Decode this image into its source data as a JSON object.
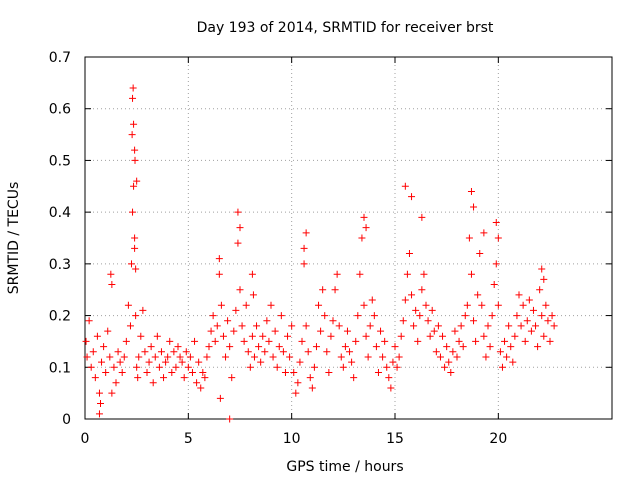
{
  "chart_data": {
    "type": "scatter",
    "title": "Day 193 of 2014, SRMTID for receiver brst",
    "xlabel": "GPS time / hours",
    "ylabel": "SRMTID / TECUs",
    "xlim": [
      0,
      25.5
    ],
    "ylim": [
      0,
      0.7
    ],
    "grid": true,
    "x_ticks": [
      {
        "value": 0,
        "label": "0"
      },
      {
        "value": 5,
        "label": "5"
      },
      {
        "value": 10,
        "label": "10"
      },
      {
        "value": 15,
        "label": "15"
      },
      {
        "value": 20,
        "label": "20"
      }
    ],
    "y_ticks": [
      {
        "value": 0,
        "label": "0"
      },
      {
        "value": 0.1,
        "label": "0.1"
      },
      {
        "value": 0.2,
        "label": "0.2"
      },
      {
        "value": 0.3,
        "label": "0.3"
      },
      {
        "value": 0.4,
        "label": "0.4"
      },
      {
        "value": 0.5,
        "label": "0.5"
      },
      {
        "value": 0.6,
        "label": "0.6"
      },
      {
        "value": 0.7,
        "label": "0.7"
      }
    ],
    "marker": "plus",
    "color": "#ff0000",
    "series": [
      {
        "name": "SRMTID",
        "x": [
          0.05,
          0.1,
          0.2,
          0.3,
          0.4,
          0.5,
          0.6,
          0.7,
          0.8,
          0.9,
          1.0,
          1.1,
          1.2,
          1.3,
          1.4,
          1.5,
          1.6,
          1.7,
          1.8,
          1.9,
          2.0,
          2.1,
          2.2,
          2.25,
          2.3,
          2.35,
          2.4,
          2.45,
          2.5,
          2.55,
          2.6,
          2.7,
          2.8,
          2.9,
          3.0,
          3.1,
          3.2,
          3.3,
          3.4,
          3.5,
          3.6,
          3.7,
          3.8,
          3.9,
          4.0,
          4.1,
          4.2,
          4.3,
          4.4,
          4.5,
          4.6,
          4.7,
          4.8,
          4.9,
          5.0,
          5.1,
          5.2,
          5.3,
          5.4,
          5.5,
          5.6,
          5.7,
          5.8,
          5.9,
          6.0,
          6.1,
          6.2,
          6.3,
          6.4,
          6.5,
          6.6,
          6.7,
          6.8,
          6.9,
          7.0,
          7.1,
          7.2,
          7.3,
          7.4,
          7.5,
          7.6,
          7.7,
          7.8,
          7.9,
          8.0,
          8.1,
          8.2,
          8.3,
          8.4,
          8.5,
          8.6,
          8.7,
          8.8,
          8.9,
          9.0,
          9.1,
          9.2,
          9.3,
          9.4,
          9.5,
          9.6,
          9.7,
          9.8,
          9.9,
          10.0,
          10.1,
          10.2,
          10.3,
          10.4,
          10.5,
          10.6,
          10.7,
          10.8,
          10.9,
          11.0,
          11.1,
          11.2,
          11.3,
          11.4,
          11.5,
          11.6,
          11.7,
          11.8,
          11.9,
          12.0,
          12.1,
          12.2,
          12.3,
          12.4,
          12.5,
          12.6,
          12.7,
          12.8,
          12.9,
          13.0,
          13.1,
          13.2,
          13.3,
          13.4,
          13.5,
          13.6,
          13.7,
          13.8,
          13.9,
          14.0,
          14.1,
          14.2,
          14.3,
          14.4,
          14.5,
          14.6,
          14.7,
          14.8,
          14.9,
          15.0,
          15.1,
          15.2,
          15.3,
          15.4,
          15.5,
          15.6,
          15.7,
          15.8,
          15.9,
          16.0,
          16.1,
          16.2,
          16.3,
          16.4,
          16.5,
          16.6,
          16.7,
          16.8,
          16.9,
          17.0,
          17.1,
          17.2,
          17.3,
          17.4,
          17.5,
          17.6,
          17.7,
          17.8,
          17.9,
          18.0,
          18.1,
          18.2,
          18.3,
          18.4,
          18.5,
          18.6,
          18.7,
          18.8,
          18.9,
          19.0,
          19.1,
          19.2,
          19.3,
          19.4,
          19.5,
          19.6,
          19.7,
          19.8,
          19.9,
          20.0,
          20.1,
          20.2,
          20.3,
          20.4,
          20.5,
          20.6,
          20.7,
          20.8,
          20.9,
          21.0,
          21.1,
          21.2,
          21.3,
          21.4,
          21.5,
          21.6,
          21.7,
          21.8,
          21.9,
          22.0,
          22.1,
          22.2,
          22.3,
          22.4,
          22.5,
          22.6,
          22.7,
          2.3,
          2.35,
          2.4,
          2.42,
          2.5,
          2.33,
          2.28,
          0.7,
          0.75,
          1.25,
          1.3,
          6.5,
          6.55,
          7.4,
          7.5,
          8.1,
          8.15,
          10.6,
          10.7,
          13.5,
          13.6,
          15.5,
          15.8,
          16.3,
          18.7,
          18.8,
          19.3,
          19.9,
          20.0,
          22.1,
          22.2,
          2.4,
          2.45,
          7.0
        ],
        "y": [
          0.15,
          0.12,
          0.19,
          0.1,
          0.13,
          0.08,
          0.16,
          0.05,
          0.11,
          0.14,
          0.09,
          0.17,
          0.12,
          0.26,
          0.1,
          0.07,
          0.13,
          0.11,
          0.09,
          0.12,
          0.15,
          0.22,
          0.18,
          0.3,
          0.4,
          0.45,
          0.35,
          0.2,
          0.1,
          0.08,
          0.12,
          0.16,
          0.21,
          0.13,
          0.09,
          0.11,
          0.14,
          0.07,
          0.12,
          0.16,
          0.1,
          0.13,
          0.08,
          0.11,
          0.12,
          0.15,
          0.09,
          0.13,
          0.1,
          0.14,
          0.12,
          0.11,
          0.08,
          0.13,
          0.1,
          0.12,
          0.09,
          0.15,
          0.07,
          0.11,
          0.06,
          0.09,
          0.08,
          0.12,
          0.14,
          0.17,
          0.2,
          0.15,
          0.18,
          0.28,
          0.22,
          0.16,
          0.12,
          0.19,
          0.14,
          0.08,
          0.17,
          0.21,
          0.34,
          0.25,
          0.18,
          0.15,
          0.22,
          0.13,
          0.1,
          0.16,
          0.12,
          0.18,
          0.14,
          0.11,
          0.16,
          0.13,
          0.19,
          0.15,
          0.22,
          0.12,
          0.17,
          0.1,
          0.14,
          0.2,
          0.13,
          0.09,
          0.16,
          0.12,
          0.18,
          0.09,
          0.05,
          0.07,
          0.11,
          0.15,
          0.3,
          0.18,
          0.13,
          0.08,
          0.06,
          0.1,
          0.14,
          0.22,
          0.17,
          0.25,
          0.2,
          0.13,
          0.09,
          0.16,
          0.19,
          0.25,
          0.28,
          0.18,
          0.12,
          0.1,
          0.14,
          0.17,
          0.13,
          0.11,
          0.08,
          0.15,
          0.2,
          0.28,
          0.35,
          0.22,
          0.16,
          0.12,
          0.18,
          0.23,
          0.2,
          0.14,
          0.09,
          0.17,
          0.12,
          0.15,
          0.1,
          0.08,
          0.06,
          0.11,
          0.14,
          0.1,
          0.12,
          0.16,
          0.19,
          0.23,
          0.28,
          0.32,
          0.24,
          0.18,
          0.21,
          0.15,
          0.2,
          0.25,
          0.28,
          0.22,
          0.19,
          0.16,
          0.21,
          0.17,
          0.13,
          0.18,
          0.12,
          0.16,
          0.1,
          0.14,
          0.11,
          0.09,
          0.13,
          0.17,
          0.12,
          0.15,
          0.18,
          0.14,
          0.2,
          0.22,
          0.35,
          0.28,
          0.19,
          0.15,
          0.24,
          0.32,
          0.22,
          0.16,
          0.12,
          0.18,
          0.14,
          0.2,
          0.26,
          0.3,
          0.22,
          0.13,
          0.1,
          0.15,
          0.12,
          0.18,
          0.14,
          0.11,
          0.16,
          0.2,
          0.24,
          0.18,
          0.22,
          0.15,
          0.19,
          0.23,
          0.17,
          0.21,
          0.18,
          0.14,
          0.25,
          0.2,
          0.16,
          0.22,
          0.19,
          0.15,
          0.2,
          0.18,
          0.62,
          0.57,
          0.52,
          0.5,
          0.46,
          0.64,
          0.55,
          0.01,
          0.03,
          0.28,
          0.05,
          0.31,
          0.04,
          0.4,
          0.37,
          0.28,
          0.24,
          0.33,
          0.36,
          0.39,
          0.37,
          0.45,
          0.43,
          0.39,
          0.44,
          0.41,
          0.36,
          0.38,
          0.35,
          0.29,
          0.27,
          0.33,
          0.29,
          0.0
        ]
      }
    ]
  }
}
